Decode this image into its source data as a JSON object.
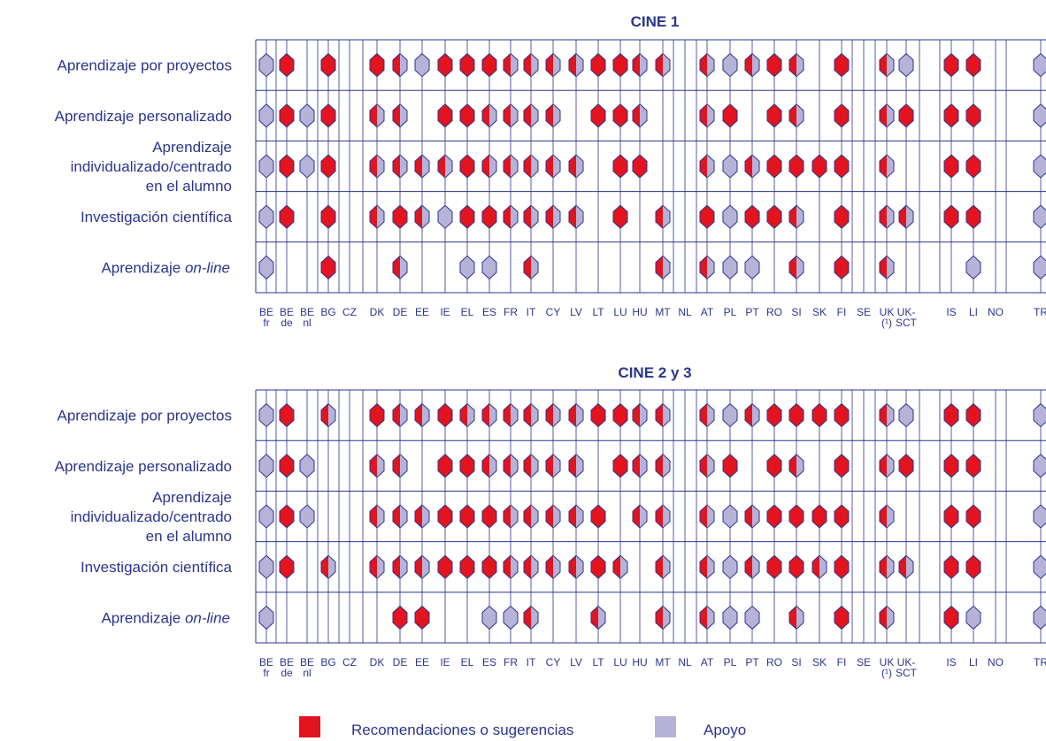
{
  "colors": {
    "recommendation": "#e3141e",
    "support": "#b7b3d8",
    "outline": "#2a3590",
    "text": "#2a3590"
  },
  "legend": {
    "recommendation": "Recomendaciones o sugerencias",
    "support": "Apoyo"
  },
  "chart_data": [
    {
      "type": "table",
      "title": "CINE 1",
      "row_labels": [
        [
          "Aprendizaje por proyectos"
        ],
        [
          "Aprendizaje personalizado"
        ],
        [
          "Aprendizaje",
          "individualizado/centrado",
          "en el alumno"
        ],
        [
          "Investigación científica"
        ],
        [
          "Aprendizaje ",
          "on-line"
        ]
      ],
      "countries": [
        [
          "BE",
          "fr"
        ],
        [
          "BE",
          "de"
        ],
        [
          "BE",
          "nl"
        ],
        [
          "BG"
        ],
        [
          "CZ"
        ],
        [
          "DK"
        ],
        [
          "DE"
        ],
        [
          "EE"
        ],
        [
          "IE"
        ],
        [
          "EL"
        ],
        [
          "ES"
        ],
        [
          "FR"
        ],
        [
          "IT"
        ],
        [
          "CY"
        ],
        [
          "LV"
        ],
        [
          "LT"
        ],
        [
          "LU"
        ],
        [
          "HU"
        ],
        [
          "MT"
        ],
        [
          "NL"
        ],
        [
          "AT"
        ],
        [
          "PL"
        ],
        [
          "PT"
        ],
        [
          "RO"
        ],
        [
          "SI"
        ],
        [
          "SK"
        ],
        [
          "FI"
        ],
        [
          "SE"
        ],
        [
          "UK",
          "(¹)"
        ],
        [
          "UK-",
          "SCT"
        ],
        [
          "IS"
        ],
        [
          "LI"
        ],
        [
          "NO"
        ],
        [
          "TR"
        ]
      ],
      "values": [
        [
          "S",
          "R",
          "",
          "R",
          "",
          "R",
          "H",
          "S",
          "R",
          "R",
          "R",
          "H",
          "H",
          "H",
          "H",
          "R",
          "R",
          "H",
          "H",
          "",
          "H",
          "S",
          "H",
          "R",
          "H",
          "",
          "R",
          "",
          "H",
          "S",
          "R",
          "R",
          "",
          "S"
        ],
        [
          "S",
          "R",
          "S",
          "R",
          "",
          "H",
          "H",
          "",
          "R",
          "R",
          "H",
          "H",
          "H",
          "H",
          "",
          "R",
          "R",
          "H",
          "",
          "",
          "H",
          "R",
          "",
          "R",
          "H",
          "",
          "R",
          "",
          "H",
          "R",
          "R",
          "R",
          "",
          "S"
        ],
        [
          "S",
          "R",
          "S",
          "R",
          "",
          "H",
          "H",
          "H",
          "H",
          "R",
          "H",
          "H",
          "H",
          "H",
          "H",
          "",
          "R",
          "R",
          "",
          "",
          "H",
          "S",
          "H",
          "R",
          "R",
          "R",
          "R",
          "",
          "H",
          "",
          "R",
          "R",
          "",
          "S"
        ],
        [
          "S",
          "R",
          "",
          "R",
          "",
          "H",
          "R",
          "H",
          "S",
          "R",
          "R",
          "H",
          "H",
          "H",
          "H",
          "",
          "R",
          "",
          "H",
          "",
          "R",
          "S",
          "R",
          "R",
          "H",
          "",
          "R",
          "",
          "H",
          "H",
          "R",
          "R",
          "",
          "S"
        ],
        [
          "S",
          "",
          "",
          "R",
          "",
          "",
          "H",
          "",
          "",
          "S",
          "S",
          "",
          "H",
          "",
          "",
          "",
          "",
          "",
          "H",
          "",
          "H",
          "S",
          "S",
          "",
          "H",
          "",
          "R",
          "",
          "H",
          "",
          "",
          "S",
          "",
          "S"
        ]
      ]
    },
    {
      "type": "table",
      "title": "CINE 2 y 3",
      "row_labels": [
        [
          "Aprendizaje por proyectos"
        ],
        [
          "Aprendizaje personalizado"
        ],
        [
          "Aprendizaje",
          "individualizado/centrado",
          "en el alumno"
        ],
        [
          "Investigación científica"
        ],
        [
          "Aprendizaje ",
          "on-line"
        ]
      ],
      "countries": [
        [
          "BE",
          "fr"
        ],
        [
          "BE",
          "de"
        ],
        [
          "BE",
          "nl"
        ],
        [
          "BG"
        ],
        [
          "CZ"
        ],
        [
          "DK"
        ],
        [
          "DE"
        ],
        [
          "EE"
        ],
        [
          "IE"
        ],
        [
          "EL"
        ],
        [
          "ES"
        ],
        [
          "FR"
        ],
        [
          "IT"
        ],
        [
          "CY"
        ],
        [
          "LV"
        ],
        [
          "LT"
        ],
        [
          "LU"
        ],
        [
          "HU"
        ],
        [
          "MT"
        ],
        [
          "NL"
        ],
        [
          "AT"
        ],
        [
          "PL"
        ],
        [
          "PT"
        ],
        [
          "RO"
        ],
        [
          "SI"
        ],
        [
          "SK"
        ],
        [
          "FI"
        ],
        [
          "SE"
        ],
        [
          "UK",
          "(¹)"
        ],
        [
          "UK-",
          "SCT"
        ],
        [
          "IS"
        ],
        [
          "LI"
        ],
        [
          "NO"
        ],
        [
          "TR"
        ]
      ],
      "values": [
        [
          "S",
          "R",
          "",
          "H",
          "",
          "R",
          "H",
          "H",
          "R",
          "H",
          "H",
          "H",
          "H",
          "H",
          "H",
          "R",
          "R",
          "H",
          "H",
          "",
          "H",
          "S",
          "H",
          "R",
          "R",
          "R",
          "R",
          "",
          "H",
          "S",
          "R",
          "R",
          "",
          "S"
        ],
        [
          "S",
          "R",
          "S",
          "",
          "",
          "H",
          "H",
          "",
          "R",
          "R",
          "H",
          "H",
          "H",
          "H",
          "H",
          "",
          "R",
          "H",
          "H",
          "",
          "H",
          "R",
          "",
          "R",
          "H",
          "",
          "R",
          "",
          "H",
          "R",
          "R",
          "R",
          "",
          "S"
        ],
        [
          "S",
          "R",
          "S",
          "",
          "",
          "H",
          "H",
          "H",
          "R",
          "R",
          "R",
          "H",
          "H",
          "H",
          "H",
          "R",
          "",
          "H",
          "H",
          "",
          "H",
          "S",
          "H",
          "R",
          "R",
          "R",
          "R",
          "",
          "H",
          "",
          "R",
          "R",
          "",
          "S"
        ],
        [
          "S",
          "R",
          "",
          "H",
          "",
          "H",
          "H",
          "H",
          "R",
          "R",
          "R",
          "H",
          "H",
          "H",
          "H",
          "R",
          "H",
          "",
          "H",
          "",
          "H",
          "S",
          "H",
          "R",
          "R",
          "H",
          "R",
          "",
          "H",
          "H",
          "R",
          "R",
          "",
          "S"
        ],
        [
          "S",
          "",
          "",
          "",
          "",
          "",
          "R",
          "R",
          "",
          "",
          "S",
          "S",
          "H",
          "",
          "",
          "H",
          "",
          "",
          "H",
          "",
          "H",
          "S",
          "S",
          "",
          "H",
          "",
          "R",
          "",
          "H",
          "",
          "R",
          "S",
          "",
          "S"
        ]
      ]
    }
  ]
}
